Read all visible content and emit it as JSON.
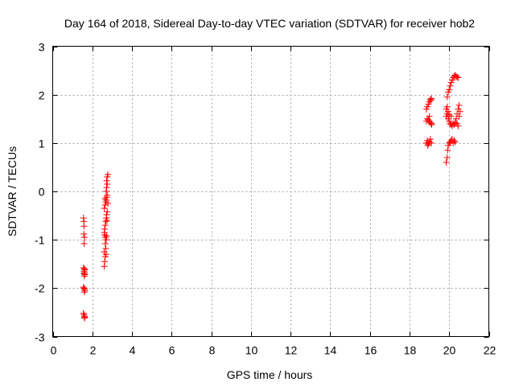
{
  "chart_data": {
    "type": "scatter",
    "title": "Day 164 of 2018, Sidereal Day-to-day VTEC variation (SDTVAR) for receiver hob2",
    "xlabel": "GPS time / hours",
    "ylabel": "SDTVAR / TECUs",
    "xlim": [
      0,
      22
    ],
    "ylim": [
      -3,
      3
    ],
    "xticks": [
      "0",
      "2",
      "4",
      "6",
      "8",
      "10",
      "12",
      "14",
      "16",
      "18",
      "20",
      "22"
    ],
    "yticks": [
      "-3",
      "-2",
      "-1",
      "0",
      "1",
      "2",
      "3"
    ],
    "grid": true,
    "marker": "plus",
    "color": "#ff0000",
    "series": [
      {
        "name": "SDTVAR",
        "points": [
          [
            1.55,
            -0.55
          ],
          [
            1.57,
            -0.62
          ],
          [
            1.58,
            -0.72
          ],
          [
            1.57,
            -0.88
          ],
          [
            1.6,
            -0.95
          ],
          [
            1.58,
            -1.08
          ],
          [
            1.55,
            -1.58
          ],
          [
            1.6,
            -1.6
          ],
          [
            1.62,
            -1.62
          ],
          [
            1.58,
            -1.65
          ],
          [
            1.6,
            -1.68
          ],
          [
            1.57,
            -1.7
          ],
          [
            1.62,
            -1.72
          ],
          [
            1.6,
            -1.75
          ],
          [
            1.55,
            -1.98
          ],
          [
            1.58,
            -2.0
          ],
          [
            1.6,
            -2.02
          ],
          [
            1.62,
            -2.05
          ],
          [
            1.6,
            -2.08
          ],
          [
            1.55,
            -2.52
          ],
          [
            1.58,
            -2.55
          ],
          [
            1.6,
            -2.58
          ],
          [
            1.62,
            -2.6
          ],
          [
            1.6,
            -2.62
          ],
          [
            2.6,
            -1.55
          ],
          [
            2.62,
            -1.45
          ],
          [
            2.65,
            -1.35
          ],
          [
            2.6,
            -1.25
          ],
          [
            2.68,
            -1.18
          ],
          [
            2.65,
            -1.08
          ],
          [
            2.7,
            -1.0
          ],
          [
            2.72,
            -0.92
          ],
          [
            2.6,
            -0.85
          ],
          [
            2.62,
            -0.78
          ],
          [
            2.65,
            -0.7
          ],
          [
            2.68,
            -0.62
          ],
          [
            2.7,
            -0.55
          ],
          [
            2.72,
            -0.48
          ],
          [
            2.75,
            -0.42
          ],
          [
            2.6,
            -0.35
          ],
          [
            2.65,
            -0.28
          ],
          [
            2.68,
            -0.22
          ],
          [
            2.7,
            -0.18
          ],
          [
            2.72,
            -0.12
          ],
          [
            2.75,
            -0.08
          ],
          [
            2.7,
            0.0
          ],
          [
            2.72,
            0.08
          ],
          [
            2.75,
            0.15
          ],
          [
            2.72,
            0.22
          ],
          [
            2.75,
            0.3
          ],
          [
            2.78,
            0.35
          ],
          [
            2.62,
            -0.9
          ],
          [
            2.66,
            -0.95
          ],
          [
            2.7,
            -1.3
          ],
          [
            2.74,
            -0.6
          ],
          [
            2.64,
            -0.15
          ],
          [
            2.78,
            -0.25
          ],
          [
            18.85,
            1.0
          ],
          [
            18.9,
            1.05
          ],
          [
            18.95,
            0.98
          ],
          [
            19.0,
            1.02
          ],
          [
            19.05,
            1.08
          ],
          [
            19.1,
            1.0
          ],
          [
            18.92,
            0.95
          ],
          [
            18.85,
            1.45
          ],
          [
            18.9,
            1.5
          ],
          [
            18.95,
            1.48
          ],
          [
            19.0,
            1.45
          ],
          [
            19.05,
            1.42
          ],
          [
            19.1,
            1.4
          ],
          [
            19.12,
            1.38
          ],
          [
            19.0,
            1.55
          ],
          [
            18.85,
            1.7
          ],
          [
            18.9,
            1.75
          ],
          [
            18.95,
            1.8
          ],
          [
            19.0,
            1.85
          ],
          [
            19.05,
            1.9
          ],
          [
            19.1,
            1.92
          ],
          [
            19.08,
            1.88
          ],
          [
            19.85,
            0.6
          ],
          [
            19.9,
            0.7
          ],
          [
            19.92,
            0.85
          ],
          [
            19.95,
            0.95
          ],
          [
            20.0,
            1.0
          ],
          [
            20.05,
            1.02
          ],
          [
            20.1,
            1.05
          ],
          [
            20.15,
            1.08
          ],
          [
            20.2,
            1.0
          ],
          [
            20.25,
            1.05
          ],
          [
            20.3,
            1.02
          ],
          [
            19.85,
            1.55
          ],
          [
            19.9,
            1.6
          ],
          [
            19.95,
            1.5
          ],
          [
            20.0,
            1.45
          ],
          [
            20.05,
            1.4
          ],
          [
            20.1,
            1.38
          ],
          [
            20.15,
            1.35
          ],
          [
            20.2,
            1.4
          ],
          [
            20.25,
            1.38
          ],
          [
            20.3,
            1.42
          ],
          [
            20.35,
            1.5
          ],
          [
            20.4,
            1.6
          ],
          [
            20.45,
            1.7
          ],
          [
            20.5,
            1.78
          ],
          [
            19.85,
            1.7
          ],
          [
            19.9,
            1.75
          ],
          [
            19.95,
            1.65
          ],
          [
            20.0,
            1.58
          ],
          [
            20.1,
            1.55
          ],
          [
            19.9,
            1.95
          ],
          [
            19.95,
            2.05
          ],
          [
            20.0,
            2.1
          ],
          [
            20.05,
            2.18
          ],
          [
            20.1,
            2.25
          ],
          [
            20.15,
            2.3
          ],
          [
            20.2,
            2.35
          ],
          [
            20.25,
            2.38
          ],
          [
            20.3,
            2.4
          ],
          [
            20.35,
            2.38
          ],
          [
            20.4,
            2.36
          ],
          [
            20.45,
            2.35
          ],
          [
            20.4,
            1.4
          ],
          [
            20.45,
            1.35
          ],
          [
            20.5,
            1.55
          ],
          [
            20.55,
            1.65
          ]
        ]
      }
    ]
  }
}
